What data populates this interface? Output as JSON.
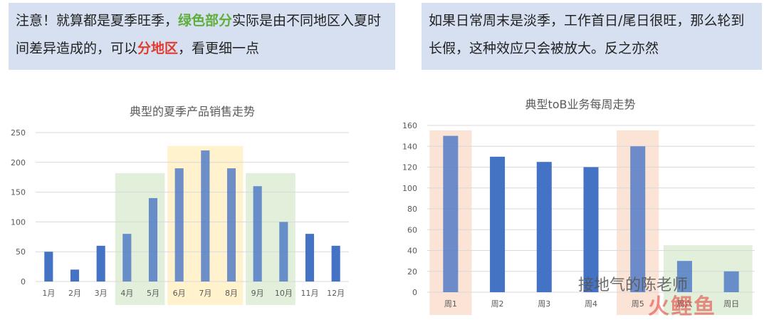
{
  "notes": {
    "left": {
      "part1": "注意！就算都是夏季旺季，",
      "green": "绿色部分",
      "part2": "实际是由不同地区入夏时间差异造成的，可以",
      "red": "分地区",
      "part3": "，看更细一点"
    },
    "right": {
      "text": "如果日常周末是淡季，工作首日/尾日很旺，那么轮到长假，这种效应只会被放大。反之亦然"
    }
  },
  "watermark": {
    "text": "接地气的陈老师",
    "logo": "火鲤鱼"
  },
  "colors": {
    "bar": "#4472c4",
    "green_band": "#e2efda",
    "yellow_band": "#fff2cc",
    "orange_band": "#fbe3d6",
    "axis_text": "#595959",
    "grid": "#d9d9d9"
  },
  "chart_data": [
    {
      "type": "bar",
      "title": "典型的夏季产品销售走势",
      "categories": [
        "1月",
        "2月",
        "3月",
        "4月",
        "5月",
        "6月",
        "7月",
        "8月",
        "9月",
        "10月",
        "11月",
        "12月"
      ],
      "values": [
        50,
        20,
        60,
        80,
        140,
        190,
        220,
        190,
        160,
        100,
        80,
        60
      ],
      "ylim": [
        0,
        250
      ],
      "yticks": [
        0,
        50,
        100,
        150,
        200,
        250
      ],
      "grid": true,
      "highlights": [
        {
          "color": "green",
          "categories": [
            "4月",
            "5月"
          ]
        },
        {
          "color": "yellow",
          "categories": [
            "6月",
            "7月",
            "8月"
          ]
        },
        {
          "color": "green",
          "categories": [
            "9月",
            "10月"
          ]
        }
      ]
    },
    {
      "type": "bar",
      "title": "典型toB业务每周走势",
      "categories": [
        "周1",
        "周2",
        "周3",
        "周4",
        "周5",
        "周六",
        "周日"
      ],
      "values": [
        150,
        130,
        125,
        120,
        140,
        30,
        20
      ],
      "ylim": [
        0,
        160
      ],
      "yticks": [
        0,
        20,
        40,
        60,
        80,
        100,
        120,
        140,
        160
      ],
      "grid": true,
      "highlights": [
        {
          "color": "orange",
          "categories": [
            "周1"
          ]
        },
        {
          "color": "orange",
          "categories": [
            "周5"
          ]
        },
        {
          "color": "green",
          "categories": [
            "周六",
            "周日"
          ]
        }
      ]
    }
  ]
}
